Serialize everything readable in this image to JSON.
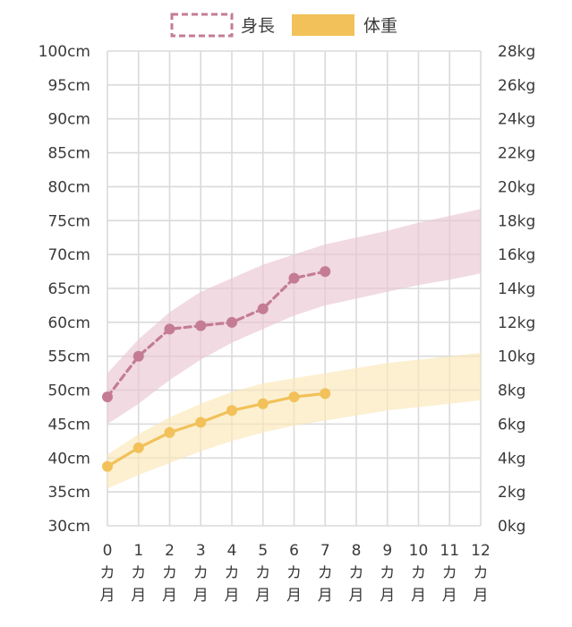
{
  "chart_data": {
    "type": "line",
    "title": "",
    "x": [
      0,
      1,
      2,
      3,
      4,
      5,
      6,
      7,
      8,
      9,
      10,
      11,
      12
    ],
    "x_labels": [
      "0",
      "1",
      "2",
      "3",
      "4",
      "5",
      "6",
      "7",
      "8",
      "9",
      "10",
      "11",
      "12"
    ],
    "x_unit_lines": [
      "カ",
      "月"
    ],
    "xlim": [
      0,
      12
    ],
    "left_axis": {
      "unit": "cm",
      "ylim": [
        30,
        100
      ],
      "ticks": [
        30,
        35,
        40,
        45,
        50,
        55,
        60,
        65,
        70,
        75,
        80,
        85,
        90,
        95,
        100
      ],
      "tick_labels": [
        "30cm",
        "35cm",
        "40cm",
        "45cm",
        "50cm",
        "55cm",
        "60cm",
        "65cm",
        "70cm",
        "75cm",
        "80cm",
        "85cm",
        "90cm",
        "95cm",
        "100cm"
      ]
    },
    "right_axis": {
      "unit": "kg",
      "ylim": [
        0,
        28
      ],
      "ticks": [
        0,
        2,
        4,
        6,
        8,
        10,
        12,
        14,
        16,
        18,
        20,
        22,
        24,
        26,
        28
      ],
      "tick_labels": [
        "0kg",
        "2kg",
        "4kg",
        "6kg",
        "8kg",
        "10kg",
        "12kg",
        "14kg",
        "16kg",
        "18kg",
        "20kg",
        "22kg",
        "24kg",
        "26kg",
        "28kg"
      ]
    },
    "grid": true,
    "legend_position": "top-center",
    "legend": [
      {
        "label": "身長",
        "style": "dashed-outline",
        "color": "#c47c94"
      },
      {
        "label": "体重",
        "style": "solid-fill",
        "color": "#f2c15a"
      }
    ],
    "series": [
      {
        "name": "身長",
        "axis": "left",
        "color": "#c47c94",
        "line_style": "dashed",
        "x": [
          0,
          1,
          2,
          3,
          4,
          5,
          6,
          7
        ],
        "values": [
          49,
          55,
          59,
          59.5,
          60,
          62,
          66.5,
          67.5
        ]
      },
      {
        "name": "体重",
        "axis": "right",
        "color": "#f2c15a",
        "line_style": "solid",
        "x": [
          0,
          1,
          2,
          3,
          4,
          5,
          6,
          7
        ],
        "values": [
          3.5,
          4.6,
          5.5,
          6.1,
          6.8,
          7.2,
          7.6,
          7.8
        ]
      }
    ],
    "bands": [
      {
        "series": "身長",
        "axis": "left",
        "color": "#e9c6d1",
        "x": [
          0,
          1,
          2,
          3,
          4,
          5,
          6,
          7,
          8,
          9,
          10,
          11,
          12
        ],
        "upper": [
          52.5,
          57.5,
          61.5,
          64.5,
          66.5,
          68.5,
          70,
          71.5,
          72.5,
          73.5,
          74.7,
          75.7,
          76.7
        ],
        "lower": [
          45,
          48,
          51.5,
          54.5,
          57,
          59,
          61,
          62.5,
          63.5,
          64.5,
          65.5,
          66.3,
          67.2
        ]
      },
      {
        "series": "体重",
        "axis": "right",
        "color": "#fbe8b9",
        "x": [
          0,
          1,
          2,
          3,
          4,
          5,
          6,
          7,
          8,
          9,
          10,
          11,
          12
        ],
        "upper": [
          4.2,
          5.4,
          6.4,
          7.2,
          7.9,
          8.4,
          8.7,
          9.0,
          9.3,
          9.6,
          9.8,
          10.0,
          10.2
        ],
        "lower": [
          2.2,
          3.0,
          3.7,
          4.4,
          5.0,
          5.5,
          5.9,
          6.2,
          6.5,
          6.8,
          7.0,
          7.2,
          7.4
        ]
      }
    ]
  }
}
